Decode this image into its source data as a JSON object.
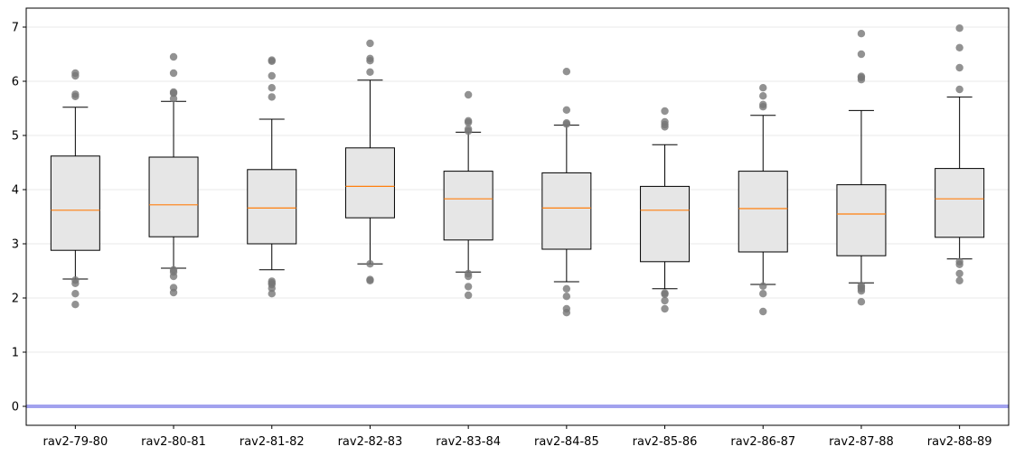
{
  "chart_data": {
    "type": "box",
    "title": "",
    "xlabel": "",
    "ylabel": "",
    "ylim": [
      -0.35,
      7.35
    ],
    "yticks": [
      0,
      1,
      2,
      3,
      4,
      5,
      6,
      7
    ],
    "grid": "horizontal",
    "reference_line": {
      "y": 0,
      "color": "#9999ee"
    },
    "colors": {
      "box_fill": "#e6e6e6",
      "box_edge": "#000000",
      "median": "#ff7f0e",
      "outlier": "#777777",
      "grid": "#e8e8e8"
    },
    "categories": [
      "rav2-79-80",
      "rav2-80-81",
      "rav2-81-82",
      "rav2-82-83",
      "rav2-83-84",
      "rav2-84-85",
      "rav2-85-86",
      "rav2-86-87",
      "rav2-87-88",
      "rav2-88-89"
    ],
    "boxes": [
      {
        "whisker_low": 2.35,
        "q1": 2.88,
        "median": 3.62,
        "q3": 4.62,
        "whisker_high": 5.52,
        "outliers": [
          1.88,
          2.08,
          2.27,
          2.33,
          5.72,
          5.76,
          6.1,
          6.15
        ]
      },
      {
        "whisker_low": 2.55,
        "q1": 3.13,
        "median": 3.72,
        "q3": 4.6,
        "whisker_high": 5.63,
        "outliers": [
          2.1,
          2.19,
          2.4,
          2.48,
          2.52,
          5.68,
          5.78,
          5.8,
          6.15,
          6.45
        ]
      },
      {
        "whisker_low": 2.52,
        "q1": 3.0,
        "median": 3.66,
        "q3": 4.37,
        "whisker_high": 5.3,
        "outliers": [
          2.08,
          2.18,
          2.25,
          2.28,
          2.31,
          5.71,
          5.88,
          6.1,
          6.37,
          6.39
        ]
      },
      {
        "whisker_low": 2.63,
        "q1": 3.48,
        "median": 4.06,
        "q3": 4.77,
        "whisker_high": 6.02,
        "outliers": [
          2.32,
          2.34,
          2.63,
          6.17,
          6.38,
          6.42,
          6.7
        ]
      },
      {
        "whisker_low": 2.48,
        "q1": 3.07,
        "median": 3.83,
        "q3": 4.34,
        "whisker_high": 5.06,
        "outliers": [
          2.05,
          2.21,
          2.4,
          2.45,
          5.08,
          5.12,
          5.24,
          5.27,
          5.75
        ]
      },
      {
        "whisker_low": 2.3,
        "q1": 2.9,
        "median": 3.66,
        "q3": 4.31,
        "whisker_high": 5.19,
        "outliers": [
          1.73,
          1.8,
          2.03,
          2.17,
          5.21,
          5.23,
          5.47,
          6.18
        ]
      },
      {
        "whisker_low": 2.17,
        "q1": 2.67,
        "median": 3.62,
        "q3": 4.06,
        "whisker_high": 4.83,
        "outliers": [
          1.8,
          1.95,
          2.07,
          2.09,
          5.16,
          5.2,
          5.25,
          5.45
        ]
      },
      {
        "whisker_low": 2.25,
        "q1": 2.85,
        "median": 3.65,
        "q3": 4.34,
        "whisker_high": 5.37,
        "outliers": [
          1.75,
          2.08,
          2.22,
          5.53,
          5.57,
          5.73,
          5.88
        ]
      },
      {
        "whisker_low": 2.28,
        "q1": 2.78,
        "median": 3.55,
        "q3": 4.09,
        "whisker_high": 5.46,
        "outliers": [
          1.93,
          2.13,
          2.17,
          2.2,
          2.23,
          6.03,
          6.07,
          6.09,
          6.5,
          6.88
        ]
      },
      {
        "whisker_low": 2.72,
        "q1": 3.12,
        "median": 3.83,
        "q3": 4.39,
        "whisker_high": 5.71,
        "outliers": [
          2.32,
          2.45,
          2.62,
          2.67,
          5.85,
          6.25,
          6.62,
          6.98
        ]
      }
    ]
  }
}
